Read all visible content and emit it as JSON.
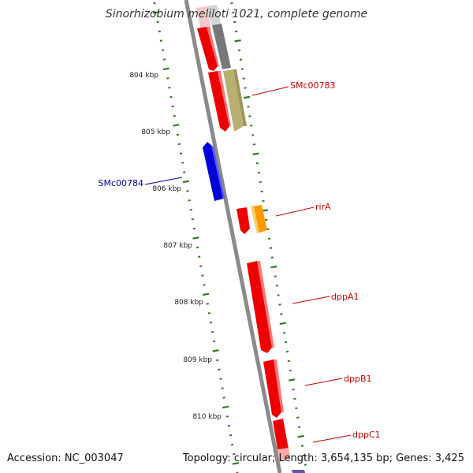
{
  "title": "Sinorhizobium meliloti 1021, complete genome",
  "accession": "Accession: NC_003047",
  "summary": "Topology: circular; Length: 3,654,135 bp; Genes: 3,425",
  "colors": {
    "backbone": "#8a8a8a",
    "ruler_ticks": "#2e7d1e",
    "forward_gene": "#ee0000",
    "reverse_gene": "#0000dd",
    "label_forward": "#cc0000",
    "label_reverse": "#0000aa",
    "gray_feature": "#777777",
    "khaki_feature": "#b8b070",
    "orange_feature": "#ff9900"
  },
  "ruler_labels": [
    "804 kbp",
    "805 kbp",
    "806 kbp",
    "807 kbp",
    "808 kbp",
    "809 kbp",
    "810 kbp"
  ],
  "gene_labels": {
    "smc00783": "SMc00783",
    "smc00784": "SMc00784",
    "rira": "rirA",
    "dppa1": "dppA1",
    "dppb1": "dppB1",
    "dppc1": "dppC1"
  }
}
